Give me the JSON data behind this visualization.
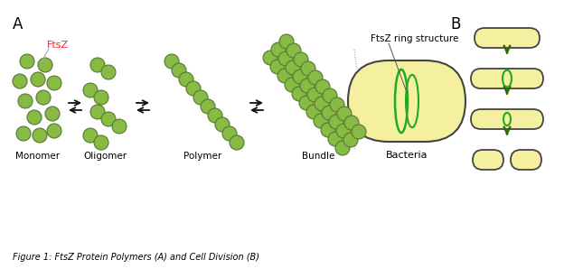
{
  "background_color": "#ffffff",
  "label_A": "A",
  "label_B": "B",
  "ftsz_label": "FtsZ",
  "ftsz_color": "#ff2222",
  "monomer_label": "Monomer",
  "oligomer_label": "Oligomer",
  "polymer_label": "Polymer",
  "bundle_label": "Bundle",
  "bacteria_label": "Bacteria",
  "ring_label": "FtsZ ring structure",
  "figure_caption": "Figure 1: FtsZ Protein Polymers (A) and Cell Division (B)",
  "cell_color": "#f5f0a0",
  "cell_edge_color": "#444444",
  "ring_color": "#22aa22",
  "arrow_color": "#336600",
  "sphere_color": "#88bb44",
  "sphere_edge_color": "#557733",
  "eq_arrow_color": "#111111"
}
